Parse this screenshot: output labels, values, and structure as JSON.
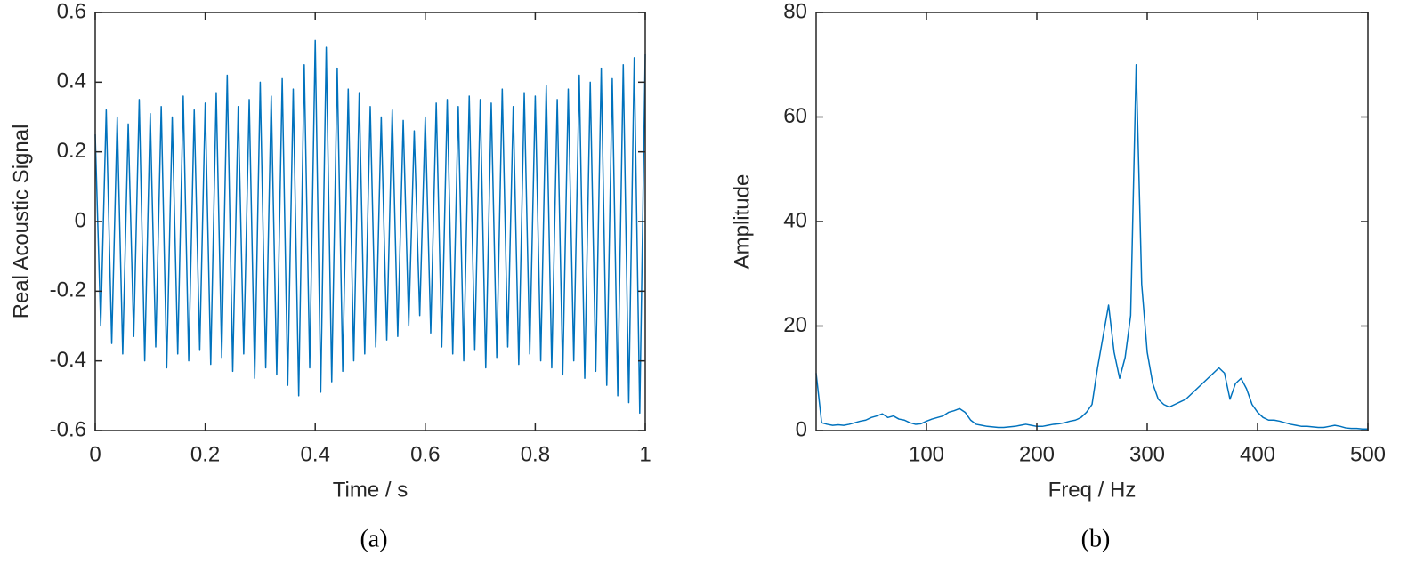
{
  "chart_data": [
    {
      "type": "line",
      "xlabel": "Time / s",
      "ylabel": "Real Acoustic Signal",
      "caption": "(a)",
      "xlim": [
        0,
        1
      ],
      "ylim": [
        -0.6,
        0.6
      ],
      "xticks": [
        0,
        0.2,
        0.4,
        0.6,
        0.8,
        1
      ],
      "yticks": [
        -0.6,
        -0.4,
        -0.2,
        0,
        0.2,
        0.4,
        0.6
      ],
      "x": [
        0,
        0.01,
        0.02,
        0.03,
        0.04,
        0.05,
        0.06,
        0.07,
        0.08,
        0.09,
        0.1,
        0.11,
        0.12,
        0.13,
        0.14,
        0.15,
        0.16,
        0.17,
        0.18,
        0.19,
        0.2,
        0.21,
        0.22,
        0.23,
        0.24,
        0.25,
        0.26,
        0.27,
        0.28,
        0.29,
        0.3,
        0.31,
        0.32,
        0.33,
        0.34,
        0.35,
        0.36,
        0.37,
        0.38,
        0.39,
        0.4,
        0.41,
        0.42,
        0.43,
        0.44,
        0.45,
        0.46,
        0.47,
        0.48,
        0.49,
        0.5,
        0.51,
        0.52,
        0.53,
        0.54,
        0.55,
        0.56,
        0.57,
        0.58,
        0.59,
        0.6,
        0.61,
        0.62,
        0.63,
        0.64,
        0.65,
        0.66,
        0.67,
        0.68,
        0.69,
        0.7,
        0.71,
        0.72,
        0.73,
        0.74,
        0.75,
        0.76,
        0.77,
        0.78,
        0.79,
        0.8,
        0.81,
        0.82,
        0.83,
        0.84,
        0.85,
        0.86,
        0.87,
        0.88,
        0.89,
        0.9,
        0.91,
        0.92,
        0.93,
        0.94,
        0.95,
        0.96,
        0.97,
        0.98,
        0.99,
        1
      ],
      "series": [
        {
          "color": "#0072bd",
          "values": [
            0.25,
            -0.3,
            0.32,
            -0.35,
            0.3,
            -0.38,
            0.28,
            -0.33,
            0.35,
            -0.4,
            0.31,
            -0.36,
            0.33,
            -0.42,
            0.3,
            -0.38,
            0.36,
            -0.4,
            0.32,
            -0.37,
            0.34,
            -0.41,
            0.37,
            -0.39,
            0.42,
            -0.43,
            0.33,
            -0.38,
            0.35,
            -0.45,
            0.4,
            -0.42,
            0.36,
            -0.44,
            0.41,
            -0.47,
            0.38,
            -0.5,
            0.45,
            -0.42,
            0.52,
            -0.49,
            0.5,
            -0.46,
            0.44,
            -0.43,
            0.38,
            -0.4,
            0.37,
            -0.38,
            0.33,
            -0.36,
            0.3,
            -0.34,
            0.32,
            -0.33,
            0.29,
            -0.3,
            0.26,
            -0.27,
            0.3,
            -0.32,
            0.34,
            -0.36,
            0.35,
            -0.38,
            0.33,
            -0.4,
            0.36,
            -0.37,
            0.35,
            -0.42,
            0.34,
            -0.39,
            0.38,
            -0.36,
            0.33,
            -0.41,
            0.37,
            -0.38,
            0.36,
            -0.4,
            0.39,
            -0.42,
            0.35,
            -0.44,
            0.38,
            -0.4,
            0.42,
            -0.45,
            0.4,
            -0.43,
            0.44,
            -0.47,
            0.41,
            -0.5,
            0.45,
            -0.52,
            0.47,
            -0.55,
            0.48
          ]
        }
      ]
    },
    {
      "type": "line",
      "xlabel": "Freq / Hz",
      "ylabel": "Amplitude",
      "caption": "(b)",
      "xlim": [
        0,
        500
      ],
      "ylim": [
        0,
        80
      ],
      "xticks": [
        100,
        200,
        300,
        400,
        500
      ],
      "yticks": [
        0,
        20,
        40,
        60,
        80
      ],
      "x": [
        0,
        5,
        10,
        15,
        20,
        25,
        30,
        35,
        40,
        45,
        50,
        55,
        60,
        65,
        70,
        75,
        80,
        85,
        90,
        95,
        100,
        105,
        110,
        115,
        120,
        125,
        130,
        135,
        140,
        145,
        150,
        155,
        160,
        165,
        170,
        175,
        180,
        185,
        190,
        195,
        200,
        205,
        210,
        215,
        220,
        225,
        230,
        235,
        240,
        245,
        250,
        255,
        260,
        265,
        270,
        275,
        280,
        285,
        290,
        295,
        300,
        305,
        310,
        315,
        320,
        325,
        330,
        335,
        340,
        345,
        350,
        355,
        360,
        365,
        370,
        375,
        380,
        385,
        390,
        395,
        400,
        405,
        410,
        415,
        420,
        425,
        430,
        435,
        440,
        445,
        450,
        455,
        460,
        465,
        470,
        475,
        480,
        485,
        490,
        495,
        500
      ],
      "series": [
        {
          "color": "#0072bd",
          "values": [
            11,
            1.5,
            1.2,
            1,
            1.1,
            1,
            1.2,
            1.5,
            1.8,
            2,
            2.5,
            2.8,
            3.2,
            2.5,
            2.8,
            2.2,
            2,
            1.5,
            1.2,
            1.3,
            1.8,
            2.2,
            2.5,
            2.8,
            3.5,
            3.8,
            4.2,
            3.5,
            2,
            1.2,
            1,
            0.8,
            0.7,
            0.6,
            0.6,
            0.7,
            0.8,
            1,
            1.2,
            1,
            0.8,
            0.8,
            1,
            1.2,
            1.3,
            1.5,
            1.8,
            2,
            2.5,
            3.5,
            5,
            12,
            18,
            24,
            15,
            10,
            14,
            22,
            70,
            28,
            15,
            9,
            6,
            5,
            4.5,
            5,
            5.5,
            6,
            7,
            8,
            9,
            10,
            11,
            12,
            11,
            6,
            9,
            10,
            8,
            5,
            3.5,
            2.5,
            2,
            2,
            1.8,
            1.5,
            1.2,
            1,
            0.8,
            0.8,
            0.7,
            0.6,
            0.6,
            0.8,
            1,
            0.8,
            0.5,
            0.4,
            0.4,
            0.3,
            0.3
          ]
        }
      ]
    }
  ]
}
